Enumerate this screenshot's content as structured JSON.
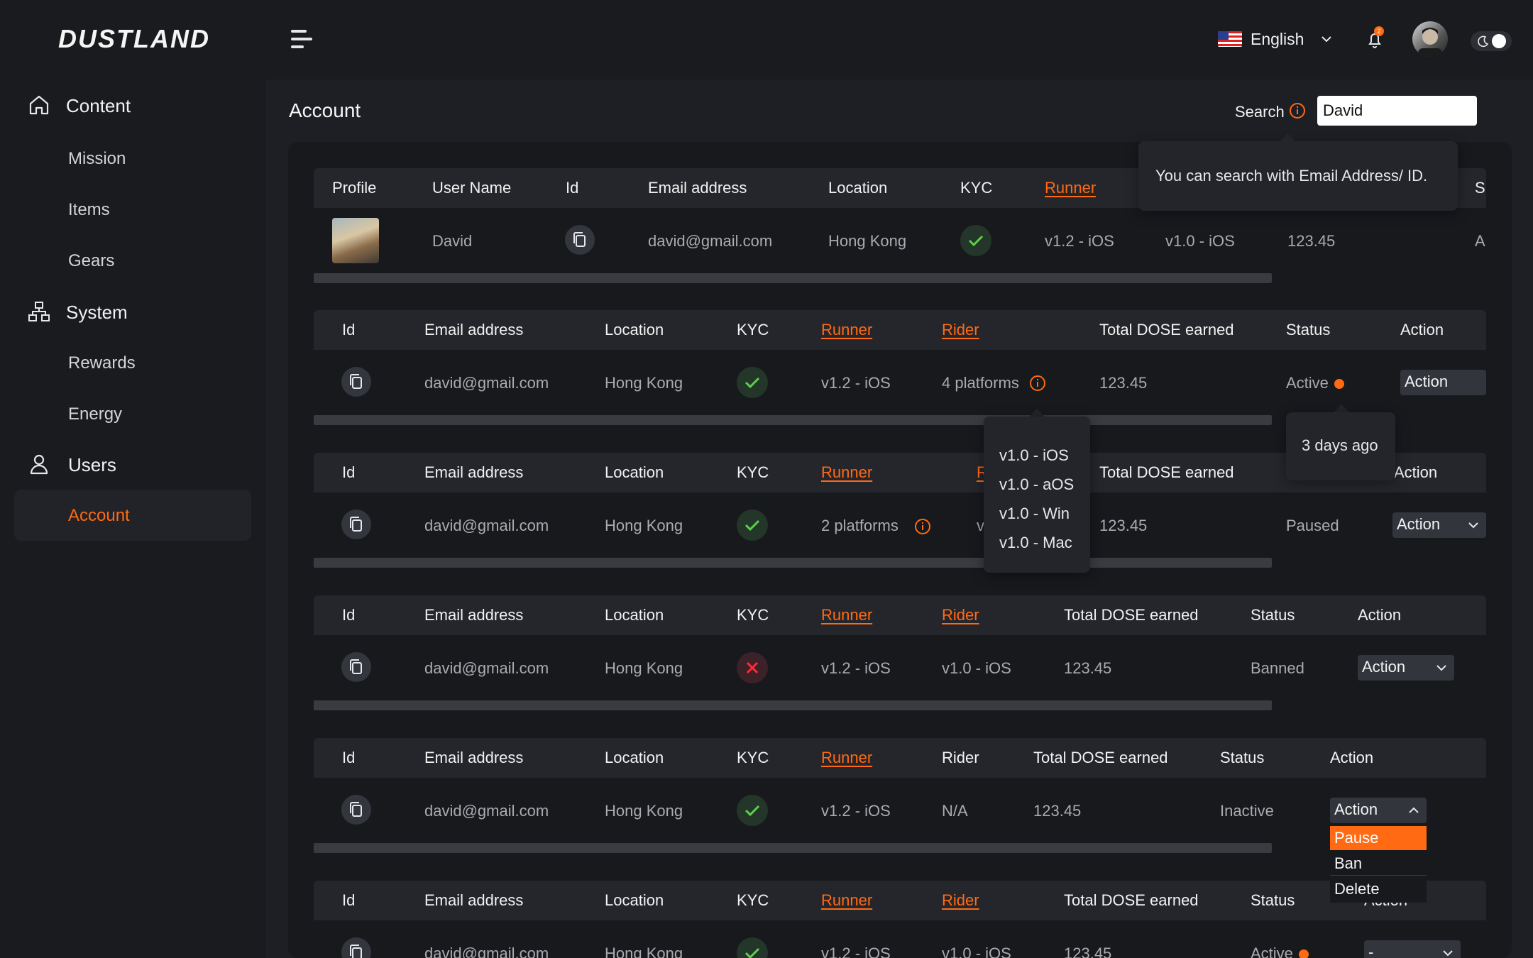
{
  "brand": {
    "logo_text": "DUSTLAND"
  },
  "header": {
    "language": "English",
    "notification_count": "2"
  },
  "sidebar": {
    "groups": [
      {
        "label": "Content",
        "icon": "home-icon",
        "items": [
          "Mission",
          "Items",
          "Gears"
        ]
      },
      {
        "label": "System",
        "icon": "sitemap-icon",
        "items": [
          "Rewards",
          "Energy"
        ]
      },
      {
        "label": "Users",
        "icon": "user-icon",
        "items": [
          "Account"
        ]
      }
    ],
    "active_item": "Account"
  },
  "page": {
    "title": "Account",
    "search_label": "Search",
    "search_value": "David",
    "search_tooltip": "You can search with Email Address/ ID."
  },
  "table1": {
    "headers": [
      "Profile",
      "User Name",
      "Id",
      "Email address",
      "Location",
      "KYC",
      "Runner",
      "S"
    ],
    "row": {
      "username": "David",
      "email": "david@gmail.com",
      "location": "Hong Kong",
      "runner": "v1.2 - iOS",
      "rider": "v1.0 - iOS",
      "dose": "123.45",
      "status_partial": "A"
    }
  },
  "tables": [
    {
      "headers": [
        "Id",
        "Email address",
        "Location",
        "KYC",
        "Runner",
        "Rider",
        "Total DOSE earned",
        "Status",
        "Action"
      ],
      "row": {
        "email": "david@gmail.com",
        "location": "Hong Kong",
        "kyc": "ok",
        "runner": "v1.2 - iOS",
        "rider": "4 platforms",
        "dose": "123.45",
        "status": "Active",
        "action": "Action"
      }
    },
    {
      "headers": [
        "Id",
        "Email address",
        "Location",
        "KYC",
        "Runner",
        "R",
        "Total DOSE earned",
        "Action"
      ],
      "row": {
        "email": "david@gmail.com",
        "location": "Hong Kong",
        "kyc": "ok",
        "runner": "2 platforms",
        "rider": "v",
        "dose": "123.45",
        "status": "Paused",
        "action": "Action"
      }
    },
    {
      "headers": [
        "Id",
        "Email address",
        "Location",
        "KYC",
        "Runner",
        "Rider",
        "Total DOSE earned",
        "Status",
        "Action"
      ],
      "row": {
        "email": "david@gmail.com",
        "location": "Hong Kong",
        "kyc": "no",
        "runner": "v1.2 - iOS",
        "rider": "v1.0 - iOS",
        "dose": "123.45",
        "status": "Banned",
        "action": "Action"
      }
    },
    {
      "headers": [
        "Id",
        "Email address",
        "Location",
        "KYC",
        "Runner",
        "Rider",
        "Total DOSE earned",
        "Status",
        "Action"
      ],
      "row": {
        "email": "david@gmail.com",
        "location": "Hong Kong",
        "kyc": "ok",
        "runner": "v1.2 - iOS",
        "rider": "N/A",
        "dose": "123.45",
        "status": "Inactive",
        "action": "Action"
      }
    },
    {
      "headers": [
        "Id",
        "Email address",
        "Location",
        "KYC",
        "Runner",
        "Rider",
        "Total DOSE earned",
        "Status",
        "Action"
      ],
      "row": {
        "email": "david@gmail.com",
        "location": "Hong Kong",
        "kyc": "ok",
        "runner": "v1.2 - iOS",
        "rider": "v1.0 - iOS",
        "dose": "123.45",
        "status": "Active",
        "action": "-"
      }
    }
  ],
  "platform_tooltip": [
    "v1.0 - iOS",
    "v1.0 - aOS",
    "v1.0 - Win",
    "v1.0 - Mac"
  ],
  "status_tooltip": "3 days ago",
  "action_menu": [
    "Pause",
    "Ban",
    "Delete"
  ],
  "colors": {
    "accent": "#ff6a13",
    "background": "#1a1b1f",
    "panel": "#18191d",
    "header_row": "#25262c",
    "success": "#5bd14a",
    "danger": "#ff2a3a"
  }
}
